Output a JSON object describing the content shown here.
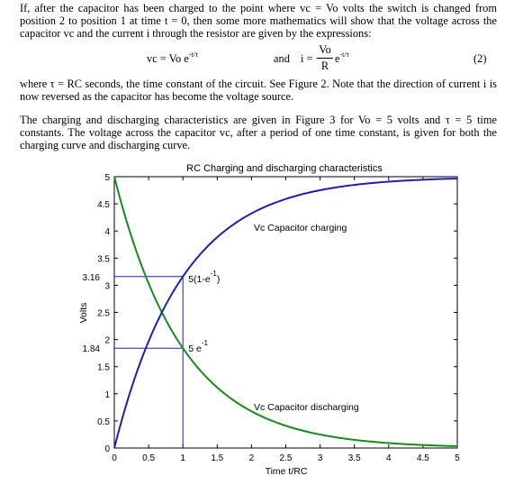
{
  "paragraph1": "If, after the capacitor has been charged to the point where vc = Vo volts the switch is changed from position 2 to position 1 at time t = 0, then some more mathematics will show that the voltage across the capacitor vc and the current i through the resistor are given by the expressions:",
  "equation": {
    "vc_lhs": "vc = Vo e",
    "vc_exp": "-t/τ",
    "and": "and",
    "i_lhs": "i = −",
    "i_num": "Vo",
    "i_den": "R",
    "i_e": "e",
    "i_exp": "-t/τ",
    "number": "(2)"
  },
  "paragraph2": "where τ = RC seconds, the time constant of the circuit. See Figure 2. Note that the direction of current i is now reversed as the capacitor has become the voltage source.",
  "paragraph3": "The charging and discharging characteristics are given in Figure 3 for Vo = 5 volts and τ = 5 time constants. The voltage across the capacitor vc, after a period of one time constant, is given for both the charging curve and discharging curve.",
  "chart_data": {
    "type": "line",
    "title": "RC Charging and discharging characteristics",
    "xlabel": "Time t/RC",
    "ylabel": "Volts",
    "xlim": [
      0,
      5
    ],
    "ylim": [
      0,
      5
    ],
    "xticks": [
      "0",
      "0.5",
      "1",
      "1.5",
      "2",
      "2.5",
      "3",
      "3.5",
      "4",
      "4.5",
      "5"
    ],
    "yticks": [
      "0",
      "0.5",
      "1",
      "1.5",
      "2",
      "2.5",
      "3",
      "3.5",
      "4",
      "4.5",
      "5"
    ],
    "extra_ytick_labels": [
      "3.16",
      "1.84"
    ],
    "series": [
      {
        "label": "Vc Capacitor charging",
        "formula": "5(1-e^-t)",
        "color": "#1f1fb4"
      },
      {
        "label": "Vc Capacitor discharging",
        "formula": "5e^-t",
        "color": "#1a8a1a"
      }
    ],
    "x": [
      0,
      0.25,
      0.5,
      0.75,
      1,
      1.5,
      2,
      2.5,
      3,
      3.5,
      4,
      4.5,
      5
    ],
    "charging": [
      0,
      1.11,
      1.97,
      2.64,
      3.16,
      3.88,
      4.32,
      4.59,
      4.75,
      4.85,
      4.91,
      4.94,
      4.97
    ],
    "discharging": [
      5,
      3.89,
      3.03,
      2.36,
      1.84,
      1.12,
      0.68,
      0.41,
      0.25,
      0.15,
      0.09,
      0.06,
      0.03
    ],
    "annotations": [
      {
        "text": "5(1-e",
        "sup": "-1",
        "tail": ")",
        "x": 1,
        "y": 3.16
      },
      {
        "text": "5 e",
        "sup": "-1",
        "tail": "",
        "x": 1,
        "y": 1.84
      }
    ],
    "grid": false
  }
}
